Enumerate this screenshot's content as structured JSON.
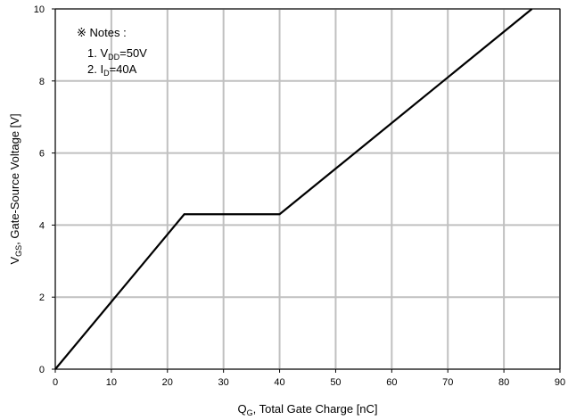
{
  "chart_data": {
    "type": "line",
    "xlabel": {
      "main": "Q",
      "sub": "G",
      "rest": ", Total Gate Charge [nC]"
    },
    "ylabel": {
      "main": "V",
      "sub": "GS",
      "rest": ", Gate-Source Voltage [V]"
    },
    "xlim": [
      0,
      90
    ],
    "ylim": [
      0,
      10
    ],
    "x_ticks": [
      0,
      10,
      20,
      30,
      40,
      50,
      60,
      70,
      80,
      90
    ],
    "y_ticks": [
      0,
      2,
      4,
      6,
      8,
      10
    ],
    "grid": true,
    "series": [
      {
        "x": [
          0,
          23,
          40,
          85
        ],
        "y": [
          0,
          4.3,
          4.3,
          10
        ],
        "color": "#000000"
      }
    ],
    "notes": {
      "heading": "※ Notes :",
      "lines": [
        {
          "pre": "1. V",
          "sub": "DD",
          "post": "=50V"
        },
        {
          "pre": "2. I",
          "sub": "D",
          "post": "=40A"
        }
      ]
    }
  }
}
